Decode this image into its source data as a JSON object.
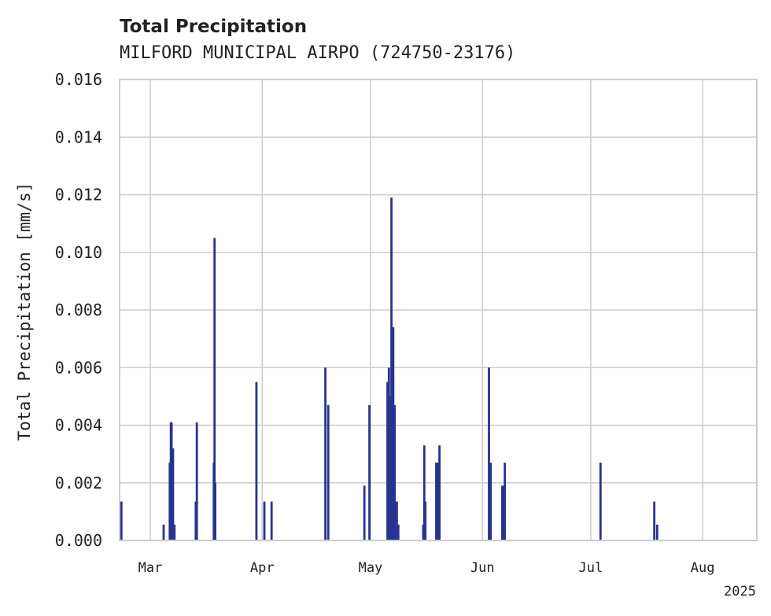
{
  "chart_data": {
    "type": "bar",
    "title": "Total Precipitation",
    "subtitle": "MILFORD MUNICIPAL AIRPO (724750-23176)",
    "xlabel": "",
    "ylabel": "Total Precipitation [mm/s]",
    "ylim": [
      0,
      0.016
    ],
    "yticks": [
      "0.000",
      "0.002",
      "0.004",
      "0.006",
      "0.008",
      "0.010",
      "0.012",
      "0.014",
      "0.016"
    ],
    "xlim_days": [
      -8.5,
      168
    ],
    "xticks": [
      {
        "label": "Mar",
        "day": 0
      },
      {
        "label": "Apr",
        "day": 31
      },
      {
        "label": "May",
        "day": 61
      },
      {
        "label": "Jun",
        "day": 92
      },
      {
        "label": "Jul",
        "day": 122
      },
      {
        "label": "Aug",
        "day": 153
      }
    ],
    "year_label": "2025",
    "series_color": "#26348f",
    "series": [
      {
        "name": "Total Precipitation",
        "days_since_mar1": [
          -8,
          3.7,
          5.4,
          5.7,
          5.9,
          6.3,
          6.7,
          12.6,
          12.9,
          17.6,
          17.8,
          18,
          29.4,
          31.6,
          33.6,
          48.5,
          49.3,
          59.3,
          60.7,
          65.7,
          66.1,
          66.3,
          66.8,
          67.3,
          67.7,
          68.3,
          68.7,
          75.6,
          75.9,
          76.2,
          79.2,
          79.6,
          80.1,
          93.8,
          94.3,
          97.5,
          97.8,
          98.2,
          124.7,
          139.6,
          140.4
        ],
        "values": [
          0.00135,
          0.00055,
          0.0027,
          0.0041,
          0.0041,
          0.0032,
          0.00055,
          0.00135,
          0.0041,
          0.0027,
          0.0105,
          0.002,
          0.0055,
          0.00135,
          0.00135,
          0.006,
          0.0047,
          0.0019,
          0.0047,
          0.0055,
          0.006,
          0.005,
          0.0119,
          0.0074,
          0.0047,
          0.00135,
          0.00055,
          0.00055,
          0.0033,
          0.00135,
          0.0027,
          0.0027,
          0.0033,
          0.006,
          0.0027,
          0.0019,
          0.0019,
          0.0027,
          0.0027,
          0.00135,
          0.00055
        ]
      }
    ]
  }
}
